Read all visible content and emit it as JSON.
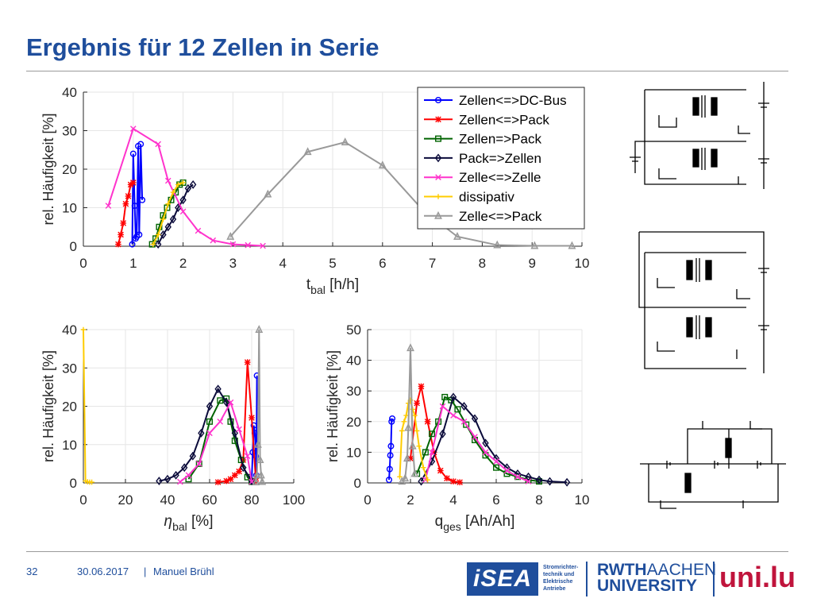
{
  "slide": {
    "title": "Ergebnis für 12 Zellen in Serie",
    "page_number": "32",
    "date": "30.06.2017",
    "separator": "|",
    "author": "Manuel Brühl"
  },
  "logos": {
    "isea": "iSEA",
    "isea_desc": [
      "Stromrichter-",
      "technik und",
      "Elektrische",
      "Antriebe"
    ],
    "rwth_top_a": "RWTH",
    "rwth_top_b": "AACHEN",
    "rwth_bottom": "UNIVERSITY",
    "unilu": "uni.lu"
  },
  "colors": {
    "title": "#1f4e9c",
    "zellen_dcbus": "#0000ff",
    "zellen_pack": "#ff0000",
    "zellen_to_pack": "#006400",
    "pack_to_zellen": "#0a0a3a",
    "zelle_zelle": "#ff33cc",
    "dissipativ": "#ffcc00",
    "zelle_pack": "#999999"
  },
  "chart_data": [
    {
      "type": "line",
      "ylabel": "rel. Häufigkeit [%]",
      "xlabel_main": "t",
      "xlabel_sub": "bal",
      "xlabel_unit": " [h/h]",
      "xlim": [
        0,
        10
      ],
      "ylim": [
        0,
        40
      ],
      "xticks": [
        "0",
        "1",
        "2",
        "3",
        "4",
        "5",
        "6",
        "7",
        "8",
        "9",
        "10"
      ],
      "yticks": [
        "0",
        "10",
        "20",
        "30",
        "40"
      ],
      "legend_position": "top-right",
      "series": [
        {
          "name": "Zellen<=>DC-Bus",
          "marker": "circle",
          "color": "#0000ff",
          "x": [
            0.98,
            1.0,
            1.03,
            1.05,
            1.07,
            1.1,
            1.12,
            1.15,
            1.18
          ],
          "y": [
            0.5,
            24,
            10.5,
            2,
            2.5,
            26,
            3,
            26.5,
            12
          ]
        },
        {
          "name": "Zellen<=>Pack",
          "marker": "star",
          "color": "#ff0000",
          "x": [
            0.7,
            0.75,
            0.8,
            0.85,
            0.9,
            0.95,
            1.0
          ],
          "y": [
            0.5,
            3,
            6,
            11,
            13,
            16,
            16.5
          ]
        },
        {
          "name": "Zellen=>Pack",
          "marker": "square",
          "color": "#006400",
          "x": [
            1.38,
            1.45,
            1.52,
            1.6,
            1.68,
            1.76,
            1.85,
            1.93,
            2.0
          ],
          "y": [
            0.5,
            2,
            5,
            8,
            10,
            12,
            14,
            16,
            16.5
          ]
        },
        {
          "name": "Pack=>Zellen",
          "marker": "diamond",
          "color": "#0a0a3a",
          "x": [
            1.5,
            1.6,
            1.7,
            1.8,
            1.9,
            2.0,
            2.1,
            2.2
          ],
          "y": [
            0.5,
            3,
            5,
            7,
            10,
            12,
            15,
            16
          ]
        },
        {
          "name": "Zelle<=>Zelle",
          "marker": "x",
          "color": "#ff33cc",
          "x": [
            0.5,
            1.0,
            1.5,
            1.7,
            2.0,
            2.3,
            2.6,
            3.0,
            3.3,
            3.6
          ],
          "y": [
            10.5,
            30.5,
            26.5,
            17,
            9,
            4,
            1.5,
            0.5,
            0.3,
            0.1
          ]
        },
        {
          "name": "dissipativ",
          "marker": "plus",
          "color": "#ffcc00",
          "x": [
            1.4,
            1.5,
            1.6,
            1.7,
            1.8,
            1.9,
            2.0
          ],
          "y": [
            0.5,
            3,
            7,
            11,
            14,
            16,
            16.5
          ]
        },
        {
          "name": "Zelle<=>Pack",
          "marker": "triangle",
          "color": "#999999",
          "x": [
            2.95,
            3.7,
            4.5,
            5.25,
            6.0,
            6.8,
            7.5,
            8.3,
            9.05,
            9.8
          ],
          "y": [
            2.5,
            13.5,
            24.5,
            27,
            21,
            9.5,
            2.5,
            0.3,
            0.1,
            0.1
          ]
        }
      ]
    },
    {
      "type": "line",
      "ylabel": "rel. Häufigkeit [%]",
      "xlabel_main": "η",
      "xlabel_sub": "bal",
      "xlabel_unit": " [%]",
      "xlim": [
        0,
        100
      ],
      "ylim": [
        0,
        40
      ],
      "xticks": [
        "0",
        "20",
        "40",
        "60",
        "80",
        "100"
      ],
      "yticks": [
        "0",
        "10",
        "20",
        "30",
        "40"
      ],
      "series": [
        {
          "name": "Zellen<=>DC-Bus",
          "marker": "circle",
          "color": "#0000ff",
          "x": [
            80,
            80.5,
            81,
            81.5,
            82,
            82.2,
            82.5
          ],
          "y": [
            0.5,
            8,
            15,
            13,
            7,
            2,
            28
          ]
        },
        {
          "name": "Zellen<=>Pack",
          "marker": "star",
          "color": "#ff0000",
          "x": [
            64,
            68,
            70,
            72,
            74,
            76,
            78,
            80,
            82
          ],
          "y": [
            0.2,
            0.5,
            1,
            2,
            3,
            6,
            31.5,
            17,
            0.5
          ]
        },
        {
          "name": "Zellen=>Pack",
          "marker": "square",
          "color": "#006400",
          "x": [
            50,
            55,
            60,
            65,
            68,
            70,
            72,
            75,
            78,
            80
          ],
          "y": [
            1,
            5,
            16,
            21.5,
            22,
            16,
            11,
            6,
            1.5,
            0.3
          ]
        },
        {
          "name": "Pack=>Zellen",
          "marker": "diamond",
          "color": "#0a0a3a",
          "x": [
            36,
            40,
            44,
            48,
            52,
            56,
            60,
            64,
            68,
            72,
            76,
            80
          ],
          "y": [
            0.5,
            1,
            2,
            4,
            7,
            13,
            20,
            24.5,
            21,
            13,
            4,
            0.5
          ]
        },
        {
          "name": "Zelle<=>Zelle",
          "marker": "x",
          "color": "#ff33cc",
          "x": [
            46,
            50,
            55,
            60,
            65,
            70,
            74,
            78,
            80
          ],
          "y": [
            0.3,
            2,
            5,
            13,
            16,
            21,
            14,
            7,
            0.3
          ]
        },
        {
          "name": "dissipativ",
          "marker": "plus",
          "color": "#ffcc00",
          "x": [
            0,
            1,
            2,
            3,
            4
          ],
          "y": [
            40,
            0.5,
            0.3,
            0.2,
            0.2
          ]
        },
        {
          "name": "Zelle<=>Pack",
          "marker": "triangle",
          "color": "#999999",
          "x": [
            82,
            82.5,
            83,
            83.5,
            84,
            84.5,
            85
          ],
          "y": [
            0.2,
            2,
            10,
            40,
            6,
            2,
            0.3
          ]
        }
      ]
    },
    {
      "type": "line",
      "ylabel": "rel. Häufigkeit [%]",
      "xlabel_main": "q",
      "xlabel_sub": "ges",
      "xlabel_unit": " [Ah/Ah]",
      "xlim": [
        0,
        10
      ],
      "ylim": [
        0,
        50
      ],
      "xticks": [
        "0",
        "2",
        "4",
        "6",
        "8",
        "10"
      ],
      "yticks": [
        "0",
        "10",
        "20",
        "30",
        "40",
        "50"
      ],
      "series": [
        {
          "name": "Zellen<=>DC-Bus",
          "marker": "circle",
          "color": "#0000ff",
          "x": [
            1.0,
            1.03,
            1.06,
            1.09,
            1.12,
            1.15
          ],
          "y": [
            1,
            4.5,
            9,
            12,
            20,
            21
          ]
        },
        {
          "name": "Zellen<=>Pack",
          "marker": "star",
          "color": "#ff0000",
          "x": [
            2.0,
            2.3,
            2.5,
            2.8,
            3.1,
            3.4,
            3.7,
            4.0,
            4.3
          ],
          "y": [
            8,
            26,
            31.5,
            20,
            10,
            4,
            1.5,
            0.5,
            0.2
          ]
        },
        {
          "name": "Zellen=>Pack",
          "marker": "square",
          "color": "#006400",
          "x": [
            2.3,
            2.7,
            3.0,
            3.3,
            3.6,
            3.9,
            4.2,
            4.6,
            5.0,
            5.5,
            6.0,
            6.5,
            7.0,
            7.5,
            8.0
          ],
          "y": [
            3,
            10,
            16,
            20,
            28,
            27,
            24,
            19,
            14,
            9,
            5,
            3,
            2,
            1,
            0.5
          ]
        },
        {
          "name": "Pack=>Zellen",
          "marker": "diamond",
          "color": "#0a0a3a",
          "x": [
            2.5,
            3.0,
            3.5,
            4.0,
            4.5,
            5.0,
            5.5,
            6.0,
            6.5,
            7.0,
            7.5,
            8.0,
            8.5,
            9.3
          ],
          "y": [
            0.5,
            7,
            16,
            28,
            25,
            21,
            13,
            8,
            5,
            3,
            2,
            1,
            0.5,
            0.2
          ]
        },
        {
          "name": "Zelle<=>Zelle",
          "marker": "x",
          "color": "#ff33cc",
          "x": [
            2.7,
            3.0,
            3.5,
            4.0,
            4.5,
            5.0,
            5.5,
            6.0,
            6.5,
            7.0,
            7.5
          ],
          "y": [
            1,
            10,
            25,
            22,
            20,
            15,
            10,
            7,
            4,
            2,
            0.5
          ]
        },
        {
          "name": "dissipativ",
          "marker": "plus",
          "color": "#ffcc00",
          "x": [
            1.5,
            1.6,
            1.7,
            1.8,
            1.9,
            2.0,
            2.1,
            2.2,
            2.3,
            2.4,
            2.6,
            2.8
          ],
          "y": [
            2,
            17,
            20,
            22,
            26,
            27,
            24,
            22,
            17,
            12,
            5,
            1
          ]
        },
        {
          "name": "Zelle<=>Pack",
          "marker": "triangle",
          "color": "#999999",
          "x": [
            1.6,
            1.75,
            1.85,
            1.9,
            2.0,
            2.1,
            2.2
          ],
          "y": [
            0.5,
            1.5,
            8,
            18,
            44,
            12,
            3
          ]
        }
      ]
    }
  ]
}
